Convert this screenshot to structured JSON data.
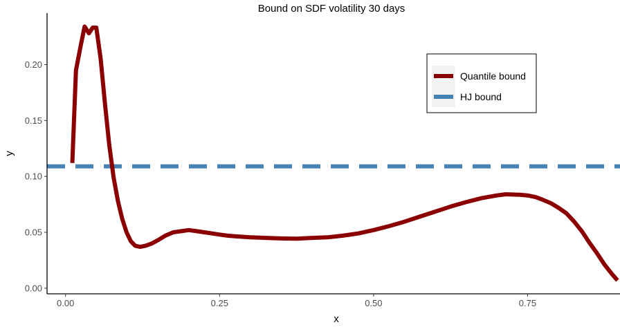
{
  "chart_data": {
    "type": "line",
    "title": "Bound on SDF volatility 30 days",
    "xlabel": "x",
    "ylabel": "y",
    "xlim": [
      -0.03,
      0.9
    ],
    "ylim": [
      -0.005,
      0.246
    ],
    "x_ticks": [
      0.0,
      0.25,
      0.5,
      0.75
    ],
    "x_tick_labels": [
      "0.00",
      "0.25",
      "0.50",
      "0.75"
    ],
    "y_ticks": [
      0.0,
      0.05,
      0.1,
      0.15,
      0.2
    ],
    "y_tick_labels": [
      "0.00",
      "0.05",
      "0.10",
      "0.15",
      "0.20"
    ],
    "grid": false,
    "legend_position": "top-right",
    "series": [
      {
        "name": "Quantile bound",
        "color": "#8b0000",
        "style": "solid",
        "x": [
          0.011,
          0.017,
          0.025,
          0.031,
          0.038,
          0.044,
          0.05,
          0.057,
          0.064,
          0.071,
          0.078,
          0.085,
          0.092,
          0.099,
          0.106,
          0.113,
          0.121,
          0.13,
          0.14,
          0.15,
          0.162,
          0.175,
          0.188,
          0.2,
          0.213,
          0.225,
          0.238,
          0.25,
          0.263,
          0.275,
          0.3,
          0.325,
          0.35,
          0.375,
          0.4,
          0.425,
          0.45,
          0.475,
          0.5,
          0.525,
          0.55,
          0.575,
          0.6,
          0.625,
          0.65,
          0.675,
          0.7,
          0.715,
          0.725,
          0.738,
          0.75,
          0.763,
          0.775,
          0.788,
          0.8,
          0.813,
          0.825,
          0.838,
          0.85,
          0.863,
          0.875,
          0.888,
          0.896
        ],
        "y": [
          0.112,
          0.195,
          0.218,
          0.234,
          0.228,
          0.233,
          0.233,
          0.205,
          0.165,
          0.128,
          0.099,
          0.078,
          0.062,
          0.05,
          0.042,
          0.038,
          0.037,
          0.038,
          0.04,
          0.043,
          0.047,
          0.05,
          0.051,
          0.052,
          0.051,
          0.05,
          0.049,
          0.048,
          0.047,
          0.0465,
          0.0455,
          0.045,
          0.0445,
          0.0443,
          0.045,
          0.0455,
          0.047,
          0.049,
          0.052,
          0.0555,
          0.0595,
          0.064,
          0.0685,
          0.073,
          0.077,
          0.0805,
          0.083,
          0.084,
          0.0838,
          0.0835,
          0.083,
          0.0815,
          0.079,
          0.076,
          0.072,
          0.067,
          0.06,
          0.051,
          0.041,
          0.031,
          0.021,
          0.012,
          0.007
        ]
      },
      {
        "name": "HJ bound",
        "color": "#4682b4",
        "style": "dashed",
        "x": [
          -0.03,
          0.9
        ],
        "y": [
          0.109,
          0.109
        ]
      }
    ]
  }
}
